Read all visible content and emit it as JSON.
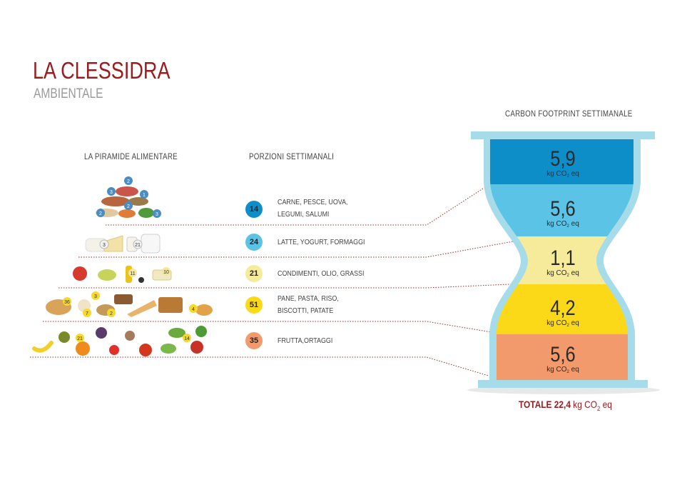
{
  "header": {
    "title": "LA CLESSIDRA",
    "subtitle": "AMBIENTALE"
  },
  "columns": {
    "pyramid": "LA PIRAMIDE ALIMENTARE",
    "portions": "PORZIONI SETTIMANALI",
    "footprint": "CARBON FOOTPRINT SETTIMANALE"
  },
  "food_icon_counts": [
    "2",
    "3",
    "1",
    "2",
    "2",
    "3",
    "3",
    "21",
    "11",
    "10",
    "36",
    "3",
    "7",
    "2",
    "4",
    "21",
    "14"
  ],
  "groups": [
    {
      "portions": "14",
      "line1": "CARNE, PESCE, UOVA,",
      "line2": "LEGUMI, SALUMI",
      "color": "#0e8ec8"
    },
    {
      "portions": "24",
      "line1": "LATTE, YOGURT, FORMAGGI",
      "line2": "",
      "color": "#5bc3e6"
    },
    {
      "portions": "21",
      "line1": "CONDIMENTI, OLIO, GRASSI",
      "line2": "",
      "color": "#f5eb9a"
    },
    {
      "portions": "51",
      "line1": "PANE, PASTA, RISO,",
      "line2": "BISCOTTI, PATATE",
      "color": "#fbd918"
    },
    {
      "portions": "35",
      "line1": "FRUTTA,ORTAGGI",
      "line2": "",
      "color": "#f29a6b"
    }
  ],
  "hourglass": {
    "frame_color": "#a6dce9",
    "segments": [
      {
        "value": "5,9",
        "unit": "kg CO",
        "sub": "2",
        "unit_end": " eq",
        "color": "#0e8ec8"
      },
      {
        "value": "5,6",
        "unit": "kg CO",
        "sub": "2",
        "unit_end": " eq",
        "color": "#5bc3e6"
      },
      {
        "value": "1,1",
        "unit": "kg CO",
        "sub": "2",
        "unit_end": " eq",
        "color": "#f5eb9a"
      },
      {
        "value": "4,2",
        "unit": "kg CO",
        "sub": "2",
        "unit_end": " eq",
        "color": "#fbd918"
      },
      {
        "value": "5,6",
        "unit": "kg CO",
        "sub": "2",
        "unit_end": " eq",
        "color": "#f29a6b"
      }
    ]
  },
  "total": {
    "label": "TOTALE 22,4",
    "unit": " kg CO",
    "sub": "2",
    "unit_end": " eq"
  }
}
